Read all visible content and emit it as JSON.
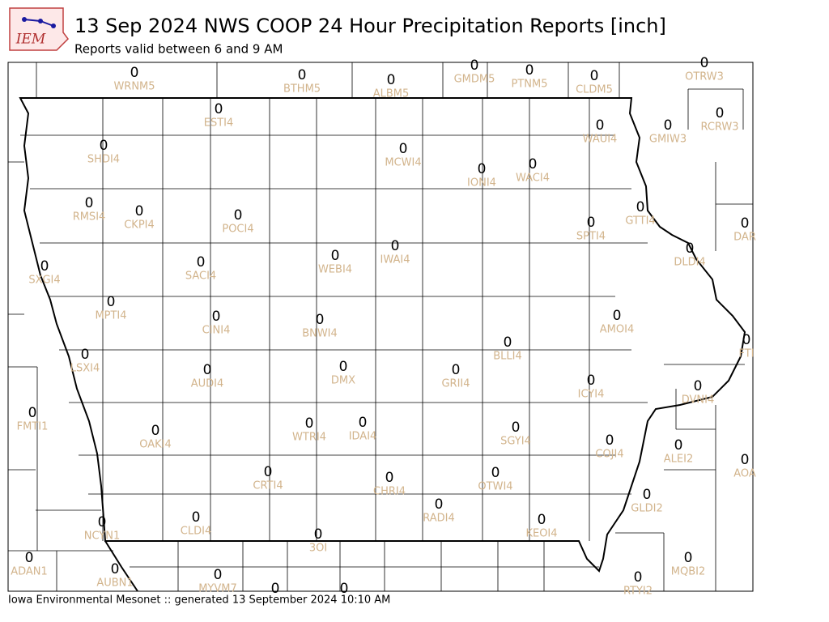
{
  "header": {
    "title": "13 Sep 2024 NWS COOP 24 Hour Precipitation Reports [inch]",
    "subtitle": "Reports valid between 6 and 9 AM",
    "logo": "IEM"
  },
  "footer": "Iowa Environmental Mesonet :: generated 13 September 2024 10:10 AM",
  "stations": [
    {
      "name": "WRNM5",
      "value": 0
    },
    {
      "name": "BTHM5",
      "value": 0
    },
    {
      "name": "ALBM5",
      "value": 0
    },
    {
      "name": "GMDM5",
      "value": 0
    },
    {
      "name": "PTNM5",
      "value": 0
    },
    {
      "name": "CLDM5",
      "value": 0
    },
    {
      "name": "OTRW3",
      "value": 0
    },
    {
      "name": "ESTI4",
      "value": 0
    },
    {
      "name": "RCRW3",
      "value": 0
    },
    {
      "name": "WAUI4",
      "value": 0
    },
    {
      "name": "GMIW3",
      "value": 0
    },
    {
      "name": "SHDI4",
      "value": 0
    },
    {
      "name": "MCWI4",
      "value": 0
    },
    {
      "name": "IONI4",
      "value": 0
    },
    {
      "name": "WACI4",
      "value": 0
    },
    {
      "name": "RMSI4",
      "value": 0
    },
    {
      "name": "CKPI4",
      "value": 0
    },
    {
      "name": "POCI4",
      "value": 0
    },
    {
      "name": "SPTI4",
      "value": 0
    },
    {
      "name": "GTTI4",
      "value": 0
    },
    {
      "name": "DAR",
      "value": 0
    },
    {
      "name": "DLDI4",
      "value": 0
    },
    {
      "name": "SXGI4",
      "value": 0
    },
    {
      "name": "SACI4",
      "value": 0
    },
    {
      "name": "WEBI4",
      "value": 0
    },
    {
      "name": "IWAI4",
      "value": 0
    },
    {
      "name": "MPTI4",
      "value": 0
    },
    {
      "name": "CINI4",
      "value": 0
    },
    {
      "name": "BNWI4",
      "value": 0
    },
    {
      "name": "AMOI4",
      "value": 0
    },
    {
      "name": "FTI",
      "value": 0
    },
    {
      "name": "BLLI4",
      "value": 0
    },
    {
      "name": "LSXI4",
      "value": 0
    },
    {
      "name": "AUDI4",
      "value": 0
    },
    {
      "name": "DMX",
      "value": 0
    },
    {
      "name": "GRII4",
      "value": 0
    },
    {
      "name": "ICYI4",
      "value": 0
    },
    {
      "name": "DVNI4",
      "value": 0
    },
    {
      "name": "FMTI1",
      "value": 0
    },
    {
      "name": "OAKI4",
      "value": 0
    },
    {
      "name": "WTRI4",
      "value": 0
    },
    {
      "name": "IDAI4",
      "value": 0
    },
    {
      "name": "SGYI4",
      "value": 0
    },
    {
      "name": "COJI4",
      "value": 0
    },
    {
      "name": "ALEI2",
      "value": 0
    },
    {
      "name": "AOA",
      "value": 0
    },
    {
      "name": "CRTI4",
      "value": 0
    },
    {
      "name": "CHRI4",
      "value": 0
    },
    {
      "name": "OTWI4",
      "value": 0
    },
    {
      "name": "GLDI2",
      "value": 0
    },
    {
      "name": "NCYN1",
      "value": 0
    },
    {
      "name": "CLDI4",
      "value": 0
    },
    {
      "name": "RADI4",
      "value": 0
    },
    {
      "name": "KEOI4",
      "value": 0
    },
    {
      "name": "3OI",
      "value": 0
    },
    {
      "name": "ADAN1",
      "value": 0
    },
    {
      "name": "AUBN1",
      "value": 0
    },
    {
      "name": "MYVM7",
      "value": 0
    },
    {
      "name": "MQBI2",
      "value": 0
    },
    {
      "name": "RTYI2",
      "value": 0
    },
    {
      "value": 0
    },
    {
      "value": 0
    }
  ]
}
